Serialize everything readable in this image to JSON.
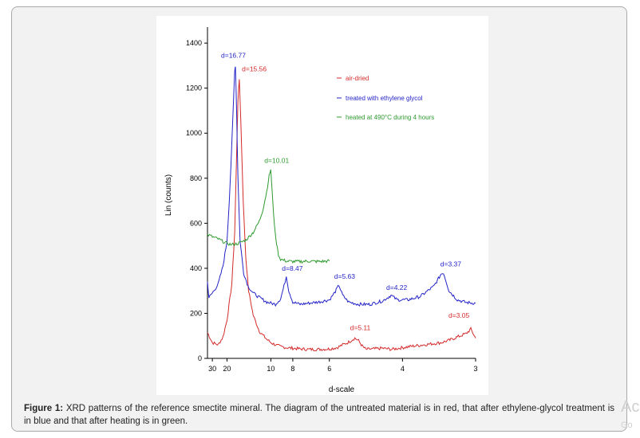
{
  "chart_data": {
    "type": "line",
    "title": "",
    "xlabel": "d-scale",
    "ylabel": "Lin (counts)",
    "ylim": [
      0,
      1450
    ],
    "xlim_angstrom": [
      36,
      3
    ],
    "x_ticks": [
      "30",
      "20",
      "10",
      "8",
      "6",
      "4",
      "3"
    ],
    "y_ticks": [
      "0",
      "200",
      "400",
      "600",
      "800",
      "1000",
      "1200",
      "1400"
    ],
    "grid": false,
    "legend_position": "top-right",
    "series": [
      {
        "name": "air-dried",
        "color": "#d42a2a",
        "x_angstrom": [
          36,
          30,
          25,
          22,
          20,
          18,
          17,
          16.4,
          16,
          15.6,
          15.2,
          14.6,
          14,
          13.4,
          12.5,
          11.5,
          10.5,
          10,
          9.5,
          9,
          8.5,
          8,
          7.5,
          7,
          6.5,
          6,
          5.7,
          5.5,
          5.3,
          5.2,
          5.11,
          5.0,
          4.9,
          4.8,
          4.6,
          4.4,
          4.2,
          4.0,
          3.8,
          3.6,
          3.4,
          3.3,
          3.2,
          3.1,
          3.05,
          3.0
        ],
        "y": [
          115,
          70,
          60,
          95,
          170,
          330,
          560,
          900,
          1150,
          1240,
          1050,
          700,
          450,
          300,
          190,
          120,
          85,
          70,
          60,
          52,
          48,
          45,
          42,
          40,
          40,
          42,
          48,
          60,
          72,
          82,
          90,
          78,
          55,
          40,
          42,
          45,
          40,
          48,
          55,
          62,
          70,
          80,
          95,
          110,
          130,
          90
        ]
      },
      {
        "name": "treated with ethylene glycol",
        "color": "#2323c8",
        "x_angstrom": [
          36,
          34,
          30,
          25,
          22,
          20,
          19,
          18,
          17.4,
          17,
          16.77,
          16.4,
          16,
          15.4,
          14.5,
          13.5,
          12.5,
          11.5,
          10.5,
          9.5,
          9,
          8.7,
          8.5,
          8.3,
          8.0,
          7.5,
          7,
          6.5,
          6.0,
          5.8,
          5.63,
          5.5,
          5.3,
          5.0,
          4.7,
          4.4,
          4.22,
          4.1,
          3.9,
          3.7,
          3.5,
          3.4,
          3.37,
          3.3,
          3.2,
          3.1,
          3.0
        ],
        "y": [
          340,
          270,
          290,
          330,
          410,
          520,
          700,
          950,
          1150,
          1280,
          1300,
          1100,
          800,
          520,
          380,
          320,
          290,
          270,
          250,
          240,
          265,
          320,
          365,
          300,
          250,
          240,
          245,
          250,
          260,
          290,
          325,
          280,
          250,
          240,
          240,
          255,
          280,
          260,
          260,
          275,
          320,
          375,
          380,
          300,
          260,
          248,
          245
        ]
      },
      {
        "name": "heated at 490°C during 4 hours",
        "color": "#2e9a2e",
        "x_angstrom": [
          36,
          30,
          25,
          20,
          18,
          16,
          14,
          12.5,
          11.5,
          11,
          10.5,
          10.2,
          10.01,
          9.8,
          9.5,
          9.2,
          9,
          8.5,
          8,
          7.5,
          7,
          6.5,
          6.0
        ],
        "y": [
          550,
          540,
          530,
          510,
          505,
          510,
          525,
          560,
          610,
          660,
          740,
          810,
          840,
          700,
          540,
          460,
          440,
          432,
          430,
          430,
          432,
          430,
          432
        ]
      }
    ],
    "peak_labels": [
      {
        "text": "d=16.77",
        "d": 16.77,
        "y": 1300,
        "color": "#2323c8"
      },
      {
        "text": "d=15.56",
        "d": 15.56,
        "y": 1240,
        "color": "#d42a2a"
      },
      {
        "text": "d=10.01",
        "d": 10.01,
        "y": 840,
        "color": "#2e9a2e"
      },
      {
        "text": "d=8.47",
        "d": 8.47,
        "y": 365,
        "color": "#2323c8"
      },
      {
        "text": "d=5.63",
        "d": 5.63,
        "y": 325,
        "color": "#2323c8"
      },
      {
        "text": "d=4.22",
        "d": 4.22,
        "y": 280,
        "color": "#2323c8"
      },
      {
        "text": "d=3.37",
        "d": 3.37,
        "y": 380,
        "color": "#2323c8"
      },
      {
        "text": "d=5.11",
        "d": 5.11,
        "y": 90,
        "color": "#d42a2a"
      },
      {
        "text": "d=3.05",
        "d": 3.05,
        "y": 130,
        "color": "#d42a2a"
      }
    ]
  },
  "caption": {
    "label": "Figure 1:",
    "text": " XRD patterns of the reference smectite mineral. The diagram of the untreated material is in red, that after ethylene-glycol treatment is in blue and that after heating is in green."
  },
  "watermark": {
    "line1": "Ac",
    "line2": "Go"
  },
  "colors": {
    "axis": "#000000",
    "frame_background": "#f2f2f2"
  }
}
